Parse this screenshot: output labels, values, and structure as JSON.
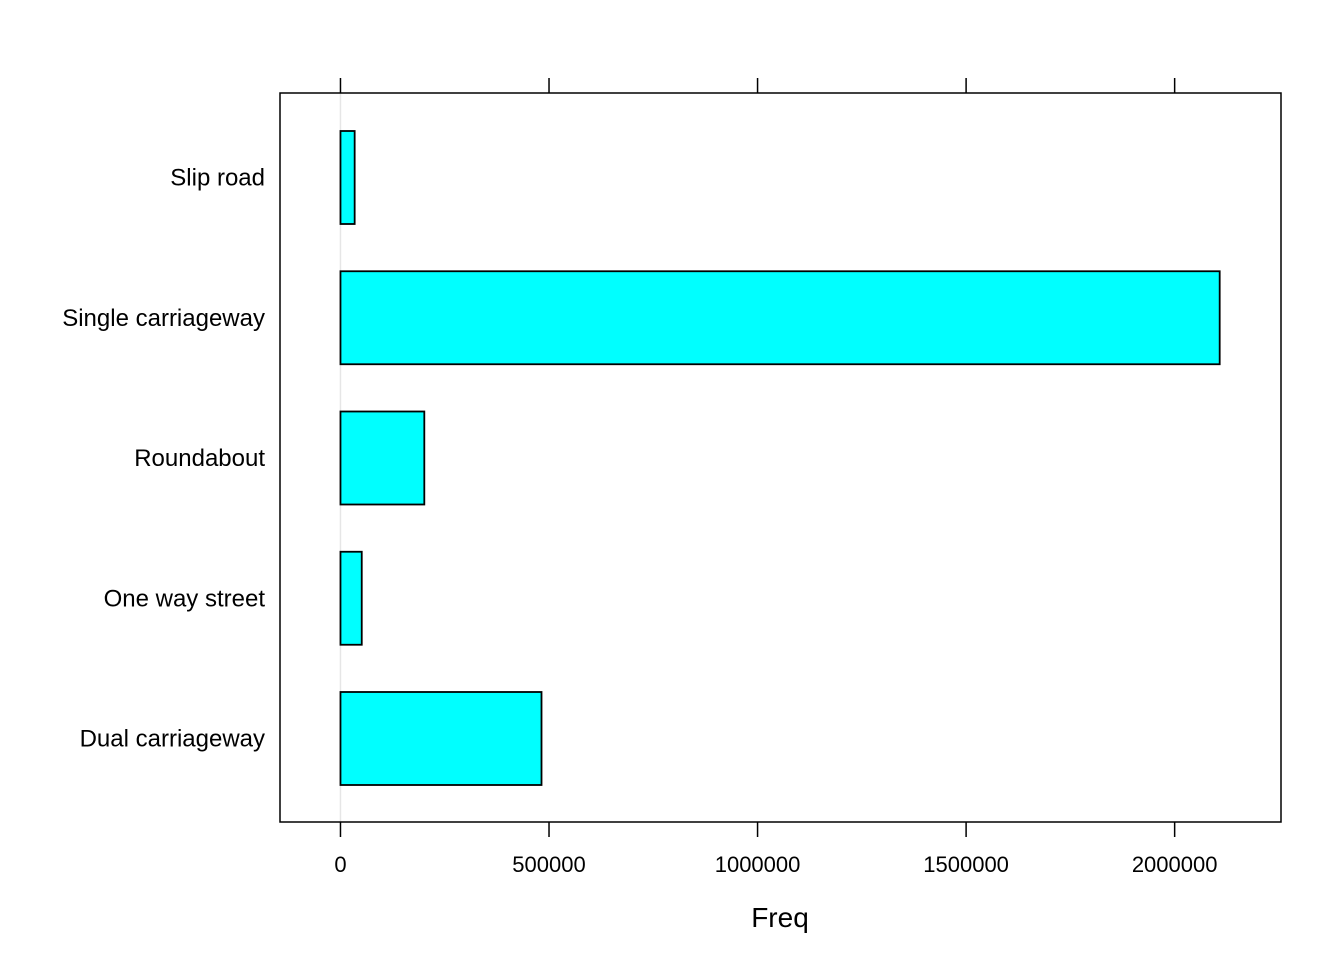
{
  "chart_data": {
    "type": "bar",
    "orientation": "horizontal",
    "categories": [
      "Dual carriageway",
      "One way street",
      "Roundabout",
      "Single carriageway",
      "Slip road"
    ],
    "values": [
      482000,
      51000,
      201000,
      2108000,
      34000
    ],
    "title": "",
    "xlabel": "Freq",
    "ylabel": "",
    "xlim": [
      -145000,
      2255000
    ],
    "x_ticks": [
      0,
      500000,
      1000000,
      1500000,
      2000000
    ],
    "x_tick_labels": [
      "0",
      "500000",
      "1000000",
      "1500000",
      "2000000"
    ],
    "grid": false,
    "reference_line_at": 0,
    "colors": {
      "bar_fill": "#00FFFF",
      "bar_stroke": "#000000",
      "reference_line": "#E6E6E6",
      "frame": "#000000"
    }
  }
}
